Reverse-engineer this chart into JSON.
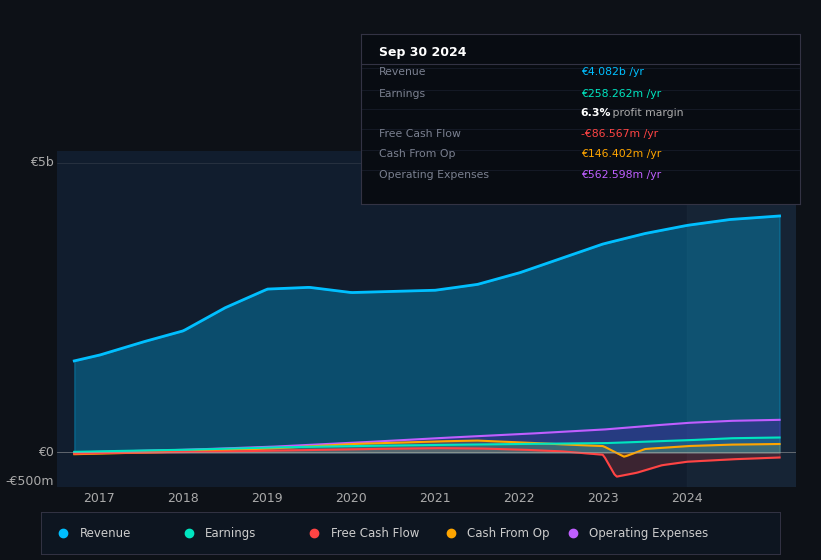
{
  "bg_color": "#0d1117",
  "plot_bg_color": "#111d2e",
  "x_ticks": [
    2017,
    2018,
    2019,
    2020,
    2021,
    2022,
    2023,
    2024
  ],
  "tooltip_title": "Sep 30 2024",
  "tooltip_rows": [
    {
      "label": "Revenue",
      "value": "€4.082b /yr",
      "value_color": "#00bfff"
    },
    {
      "label": "Earnings",
      "value": "€258.262m /yr",
      "value_color": "#00e5c0"
    },
    {
      "label": "",
      "value1": "6.3%",
      "value2": " profit margin",
      "value_color": "#ffffff"
    },
    {
      "label": "Free Cash Flow",
      "value": "-€86.567m /yr",
      "value_color": "#ff4444"
    },
    {
      "label": "Cash From Op",
      "value": "€146.402m /yr",
      "value_color": "#ffa500"
    },
    {
      "label": "Operating Expenses",
      "value": "€562.598m /yr",
      "value_color": "#bf5fff"
    }
  ],
  "legend": [
    {
      "label": "Revenue",
      "color": "#00bfff"
    },
    {
      "label": "Earnings",
      "color": "#00e5c0"
    },
    {
      "label": "Free Cash Flow",
      "color": "#ff4444"
    },
    {
      "label": "Cash From Op",
      "color": "#ffa500"
    },
    {
      "label": "Operating Expenses",
      "color": "#bf5fff"
    }
  ],
  "ylabel_5b": "€5b",
  "ylabel_0": "€0",
  "ylabel_neg500m": "-€500m",
  "ylim": [
    -600,
    5200
  ],
  "xlim": [
    2016.5,
    2025.3
  ],
  "shaded_start": 2024.0
}
